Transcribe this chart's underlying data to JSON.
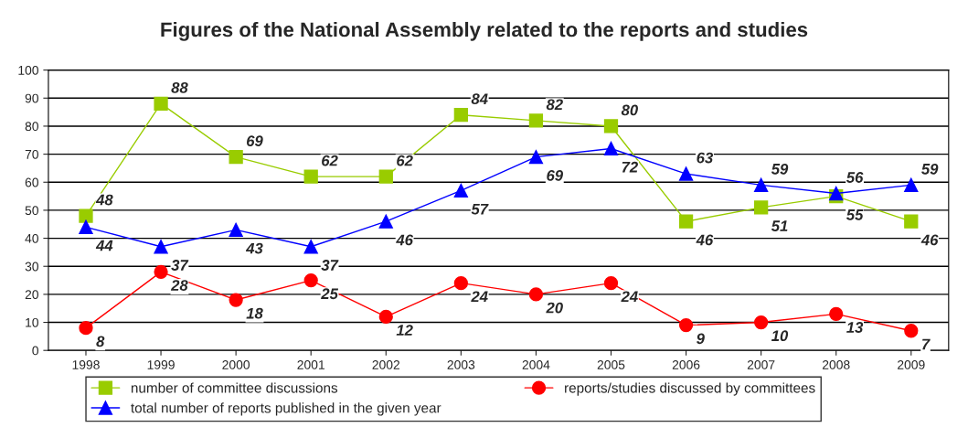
{
  "chart_data": {
    "type": "line",
    "title": "Figures of the National Assembly related to the reports and studies",
    "categories": [
      "1998",
      "1999",
      "2000",
      "2001",
      "2002",
      "2003",
      "2004",
      "2005",
      "2006",
      "2007",
      "2008",
      "2009"
    ],
    "series": [
      {
        "name": "number of committee discussions",
        "color": "#99cc00",
        "marker": "square",
        "values": [
          48,
          88,
          69,
          62,
          62,
          84,
          82,
          80,
          46,
          51,
          55,
          46
        ]
      },
      {
        "name": "total number of reports published in the given year",
        "color": "#0000ff",
        "marker": "triangle",
        "values": [
          44,
          37,
          43,
          37,
          46,
          57,
          69,
          72,
          63,
          59,
          56,
          59
        ]
      },
      {
        "name": "reports/studies discussed by committees",
        "color": "#ff0000",
        "marker": "circle",
        "values": [
          8,
          28,
          18,
          25,
          12,
          24,
          20,
          24,
          9,
          10,
          13,
          7
        ]
      }
    ],
    "ylim": [
      0,
      100
    ],
    "yticks": [
      0,
      10,
      20,
      30,
      40,
      50,
      60,
      70,
      80,
      90,
      100
    ],
    "grid": "y",
    "legend": "bottom",
    "data_labels": true,
    "line_style": "solid"
  }
}
